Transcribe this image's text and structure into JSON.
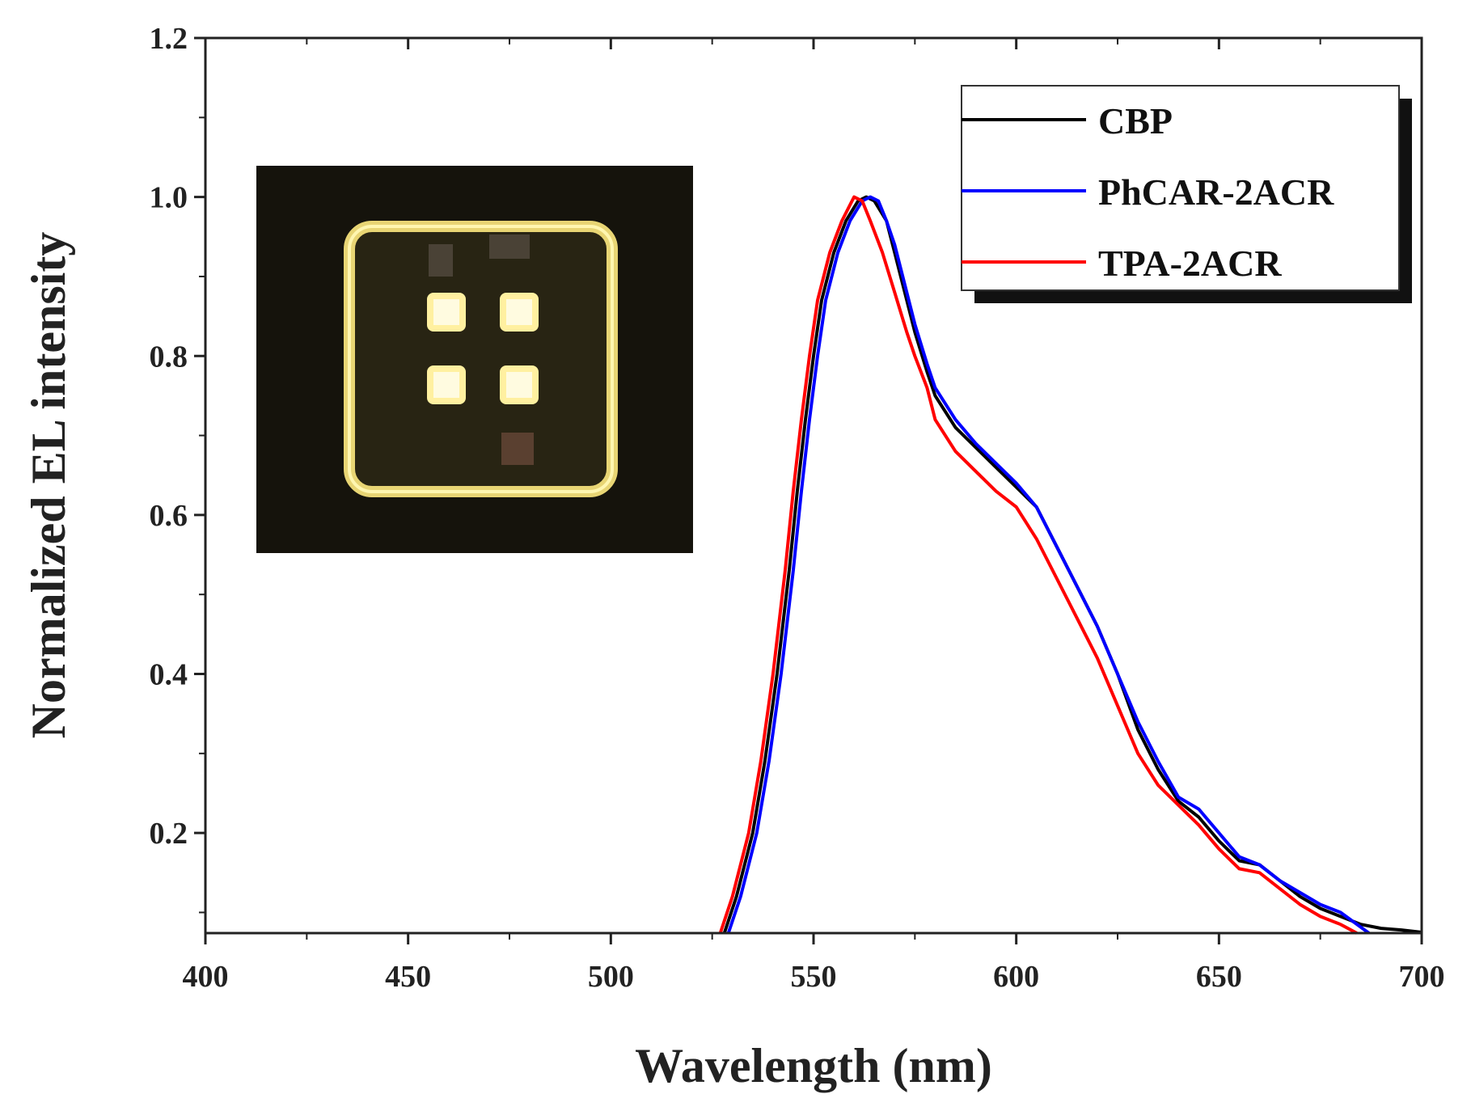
{
  "chart_data": {
    "type": "line",
    "xlabel": "Wavelength (nm)",
    "ylabel": "Normalized EL intensity",
    "xlim": [
      400,
      700
    ],
    "ylim": [
      0.074,
      1.2
    ],
    "xticks": [
      400,
      450,
      500,
      550,
      600,
      650,
      700
    ],
    "yticks": [
      0.2,
      0.4,
      0.6,
      0.8,
      1.0,
      1.2
    ],
    "ytick_labels": [
      "0.2",
      "0.4",
      "0.6",
      "0.8",
      "1.0",
      "1.2"
    ],
    "legend_position": "top-right",
    "inset": "photo of device with four lit yellow pixels",
    "series": [
      {
        "name": "CBP",
        "color": "#000000",
        "x": [
          528,
          531,
          535,
          538,
          541,
          544,
          546,
          548,
          550,
          552,
          555,
          558,
          561,
          563,
          565,
          568,
          570,
          573,
          575,
          578,
          580,
          585,
          590,
          595,
          600,
          603,
          605,
          610,
          615,
          620,
          625,
          630,
          635,
          640,
          645,
          650,
          655,
          660,
          665,
          670,
          675,
          680,
          685,
          690,
          695,
          700
        ],
        "y": [
          0.074,
          0.12,
          0.2,
          0.29,
          0.4,
          0.53,
          0.63,
          0.72,
          0.8,
          0.87,
          0.93,
          0.97,
          0.995,
          1.0,
          0.995,
          0.97,
          0.93,
          0.87,
          0.83,
          0.78,
          0.75,
          0.71,
          0.685,
          0.66,
          0.635,
          0.62,
          0.61,
          0.56,
          0.51,
          0.46,
          0.4,
          0.33,
          0.28,
          0.24,
          0.22,
          0.19,
          0.165,
          0.16,
          0.14,
          0.12,
          0.105,
          0.095,
          0.085,
          0.08,
          0.078,
          0.075
        ]
      },
      {
        "name": "PhCAR-2ACR",
        "color": "#0000ff",
        "x": [
          529,
          532,
          536,
          539,
          542,
          545,
          547,
          549,
          551,
          553,
          556,
          559,
          562,
          564,
          566,
          568,
          570,
          573,
          575,
          578,
          580,
          585,
          590,
          595,
          600,
          605,
          610,
          615,
          620,
          625,
          630,
          635,
          640,
          645,
          650,
          655,
          660,
          665,
          670,
          675,
          680,
          687
        ],
        "y": [
          0.074,
          0.12,
          0.2,
          0.29,
          0.4,
          0.53,
          0.63,
          0.72,
          0.8,
          0.87,
          0.93,
          0.97,
          0.995,
          1.0,
          0.995,
          0.97,
          0.94,
          0.88,
          0.84,
          0.79,
          0.76,
          0.72,
          0.69,
          0.665,
          0.64,
          0.61,
          0.56,
          0.51,
          0.46,
          0.4,
          0.34,
          0.29,
          0.245,
          0.23,
          0.2,
          0.17,
          0.16,
          0.14,
          0.125,
          0.11,
          0.1,
          0.074
        ]
      },
      {
        "name": "TPA-2ACR",
        "color": "#ff0000",
        "x": [
          527,
          530,
          534,
          537,
          540,
          543,
          545,
          547,
          549,
          551,
          554,
          557,
          560,
          562,
          564,
          567,
          570,
          573,
          575,
          578,
          580,
          585,
          590,
          595,
          600,
          605,
          610,
          615,
          620,
          625,
          630,
          635,
          640,
          645,
          650,
          655,
          660,
          665,
          670,
          675,
          680,
          684
        ],
        "y": [
          0.074,
          0.12,
          0.2,
          0.29,
          0.4,
          0.53,
          0.63,
          0.72,
          0.8,
          0.87,
          0.93,
          0.97,
          1.0,
          0.995,
          0.97,
          0.93,
          0.88,
          0.83,
          0.8,
          0.76,
          0.72,
          0.68,
          0.655,
          0.63,
          0.61,
          0.57,
          0.52,
          0.47,
          0.42,
          0.36,
          0.3,
          0.26,
          0.235,
          0.21,
          0.18,
          0.155,
          0.15,
          0.13,
          0.11,
          0.095,
          0.085,
          0.074
        ]
      }
    ]
  }
}
